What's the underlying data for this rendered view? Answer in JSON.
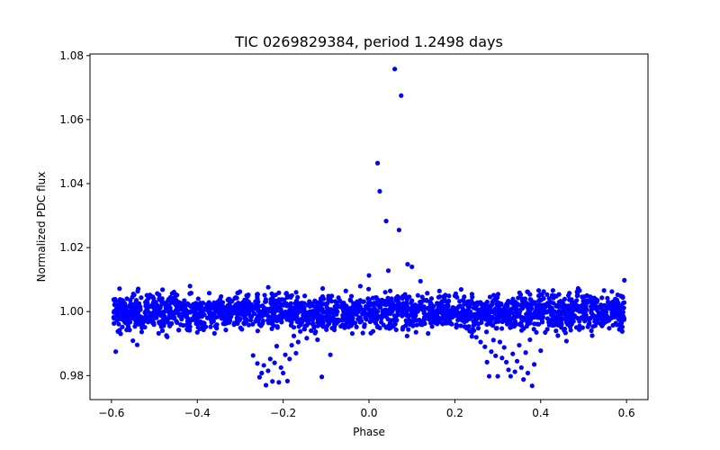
{
  "chart_data": {
    "type": "scatter",
    "title": "TIC 0269829384, period 1.2498 days",
    "xlabel": "Phase",
    "ylabel": "Normalized PDC flux",
    "xlim": [
      -0.65,
      0.65
    ],
    "ylim": [
      0.9725,
      1.0805
    ],
    "xticks": [
      -0.6,
      -0.4,
      -0.2,
      0.0,
      0.2,
      0.4,
      0.6
    ],
    "xtick_labels": [
      "−0.6",
      "−0.4",
      "−0.2",
      "0.0",
      "0.2",
      "0.4",
      "0.6"
    ],
    "yticks": [
      0.98,
      1.0,
      1.02,
      1.04,
      1.06,
      1.08
    ],
    "ytick_labels": [
      "0.98",
      "1.00",
      "1.02",
      "1.04",
      "1.06",
      "1.08"
    ],
    "grid": false,
    "marker_color": "#0000ff",
    "series": [
      {
        "name": "flux",
        "points": [
          [
            -0.59,
            0.9875
          ],
          [
            -0.585,
            0.9938
          ],
          [
            -0.55,
            0.9909
          ],
          [
            -0.54,
            0.9896
          ],
          [
            -0.49,
            0.9932
          ],
          [
            -0.47,
            0.9921
          ],
          [
            -0.4,
            0.9935
          ],
          [
            -0.36,
            0.9932
          ],
          [
            -0.31,
            0.9965
          ],
          [
            -0.28,
            0.9958
          ],
          [
            -0.27,
            0.9863
          ],
          [
            -0.26,
            0.9838
          ],
          [
            -0.255,
            0.9795
          ],
          [
            -0.25,
            0.9808
          ],
          [
            -0.245,
            0.9832
          ],
          [
            -0.24,
            0.977
          ],
          [
            -0.235,
            0.9815
          ],
          [
            -0.23,
            0.9852
          ],
          [
            -0.225,
            0.9782
          ],
          [
            -0.22,
            0.984
          ],
          [
            -0.215,
            0.9892
          ],
          [
            -0.21,
            0.9779
          ],
          [
            -0.205,
            0.9825
          ],
          [
            -0.2,
            0.9808
          ],
          [
            -0.195,
            0.9865
          ],
          [
            -0.19,
            0.9783
          ],
          [
            -0.185,
            0.9852
          ],
          [
            -0.18,
            0.9895
          ],
          [
            -0.175,
            0.9924
          ],
          [
            -0.17,
            0.987
          ],
          [
            -0.165,
            0.9905
          ],
          [
            -0.16,
            0.9938
          ],
          [
            -0.15,
            0.9945
          ],
          [
            -0.145,
            0.9917
          ],
          [
            -0.13,
            0.9962
          ],
          [
            -0.12,
            0.9912
          ],
          [
            -0.11,
            0.9796
          ],
          [
            -0.09,
            0.9865
          ],
          [
            0.0,
            1.0113
          ],
          [
            0.02,
            1.0464
          ],
          [
            0.025,
            1.0376
          ],
          [
            0.04,
            1.0283
          ],
          [
            0.045,
            1.0128
          ],
          [
            0.06,
            1.0758
          ],
          [
            0.07,
            1.0255
          ],
          [
            0.075,
            1.0675
          ],
          [
            0.09,
            1.0148
          ],
          [
            0.1,
            1.014
          ],
          [
            0.12,
            1.0095
          ],
          [
            0.24,
            0.9935
          ],
          [
            0.25,
            0.992
          ],
          [
            0.26,
            0.9905
          ],
          [
            0.27,
            0.989
          ],
          [
            0.275,
            0.9842
          ],
          [
            0.28,
            0.9798
          ],
          [
            0.285,
            0.9875
          ],
          [
            0.29,
            0.9911
          ],
          [
            0.295,
            0.9862
          ],
          [
            0.3,
            0.9798
          ],
          [
            0.305,
            0.9905
          ],
          [
            0.31,
            0.9855
          ],
          [
            0.315,
            0.9888
          ],
          [
            0.32,
            0.9842
          ],
          [
            0.325,
            0.9818
          ],
          [
            0.33,
            0.9798
          ],
          [
            0.335,
            0.9868
          ],
          [
            0.34,
            0.9812
          ],
          [
            0.345,
            0.9845
          ],
          [
            0.35,
            0.9895
          ],
          [
            0.355,
            0.9825
          ],
          [
            0.36,
            0.9788
          ],
          [
            0.365,
            0.9872
          ],
          [
            0.37,
            0.9808
          ],
          [
            0.375,
            0.9912
          ],
          [
            0.38,
            0.9768
          ],
          [
            0.385,
            0.9835
          ],
          [
            0.39,
            0.9935
          ],
          [
            0.4,
            0.9878
          ],
          [
            0.42,
            0.9958
          ],
          [
            0.44,
            0.9925
          ],
          [
            0.46,
            0.9908
          ],
          [
            0.47,
            0.9942
          ],
          [
            0.52,
            0.9925
          ],
          [
            0.59,
            0.9938
          ],
          [
            0.595,
            1.0098
          ]
        ]
      }
    ]
  }
}
